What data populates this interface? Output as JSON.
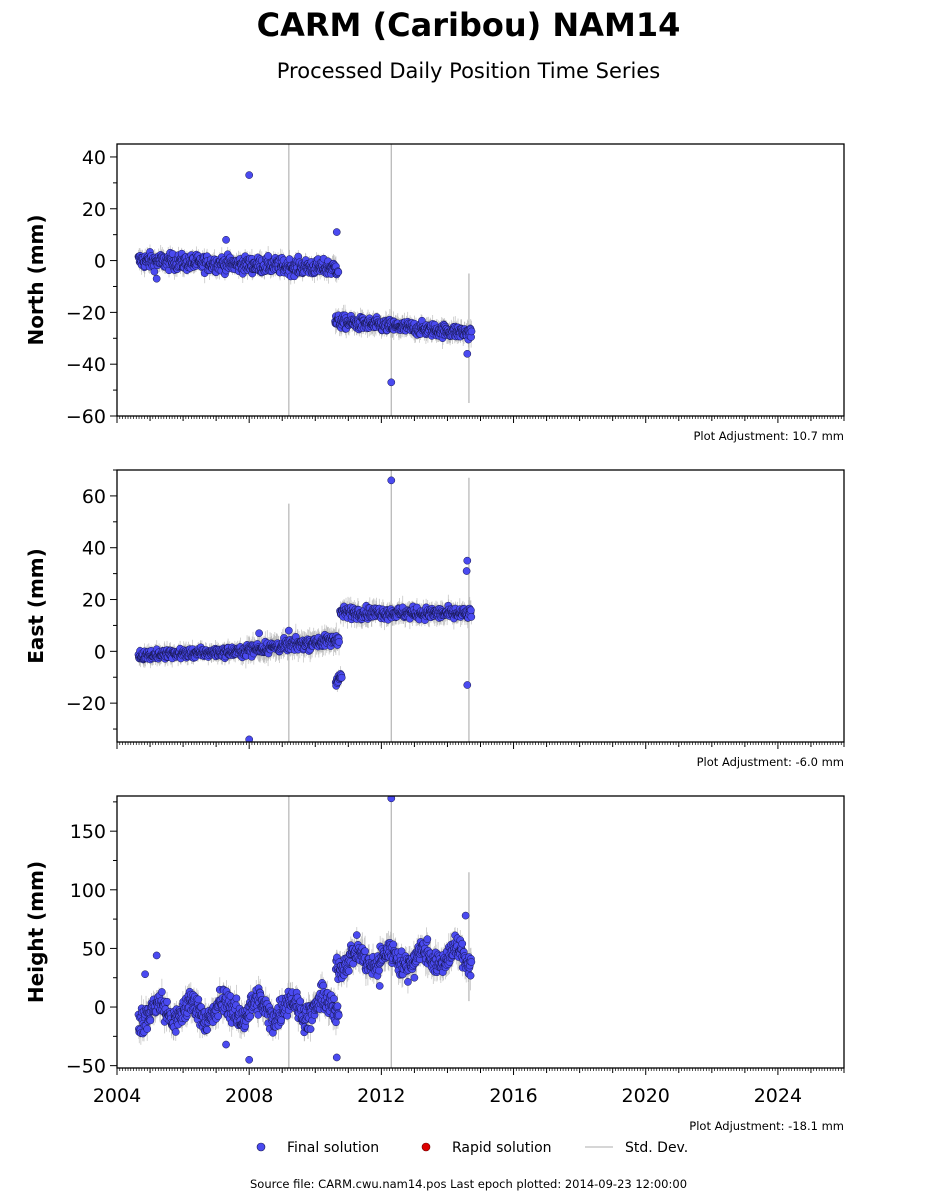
{
  "title": "CARM (Caribou) NAM14",
  "subtitle": "Processed Daily Position Time Series",
  "source_note": "Source file: CARM.cwu.nam14.pos  Last epoch plotted: 2014-09-23 12:00:00",
  "legend": {
    "final": "Final solution",
    "rapid": "Rapid solution",
    "std": "Std. Dev."
  },
  "colors": {
    "final": "#4a4af0",
    "final_edge": "#15154a",
    "rapid": "#dd0000",
    "std": "#b4b4b4"
  },
  "chart_data": [
    {
      "type": "scatter",
      "ylabel": "North (mm)",
      "adjustment": "Plot Adjustment: 10.7 mm",
      "xlim": [
        2004,
        2026
      ],
      "ylim": [
        -60,
        45
      ],
      "yticks": [
        "40",
        "20",
        "0",
        "−20",
        "−40",
        "−60"
      ],
      "ytick_values": [
        40,
        20,
        0,
        -20,
        -40,
        -60
      ],
      "segments": [
        {
          "x0": 2004.65,
          "x1": 2010.7,
          "y0": 0.0,
          "y1": -3.0,
          "scatter": 2.2,
          "std": 2.6
        },
        {
          "x0": 2010.6,
          "x1": 2014.73,
          "y0": -23.5,
          "y1": -28.0,
          "scatter": 1.8,
          "std": 2.8
        }
      ],
      "outliers": [
        [
          2008.0,
          33
        ],
        [
          2007.3,
          8
        ],
        [
          2010.65,
          11
        ],
        [
          2012.3,
          -47
        ],
        [
          2014.6,
          -36
        ],
        [
          2005.2,
          -7
        ]
      ],
      "spikes": [
        [
          2009.2,
          -60,
          45
        ],
        [
          2012.3,
          -60,
          45
        ],
        [
          2014.65,
          -55,
          -5
        ]
      ]
    },
    {
      "type": "scatter",
      "ylabel": "East (mm)",
      "adjustment": "Plot Adjustment: -6.0 mm",
      "xlim": [
        2004,
        2026
      ],
      "ylim": [
        -35,
        70
      ],
      "yticks": [
        "60",
        "40",
        "20",
        "0",
        "−20"
      ],
      "ytick_values": [
        60,
        40,
        20,
        0,
        -20
      ],
      "segments": [
        {
          "x0": 2004.65,
          "x1": 2007.9,
          "y0": -1.5,
          "y1": 0.0,
          "scatter": 1.3,
          "std": 2.5
        },
        {
          "x0": 2007.9,
          "x1": 2010.72,
          "y0": 0.5,
          "y1": 4.5,
          "scatter": 1.6,
          "std": 3.5
        },
        {
          "x0": 2010.62,
          "x1": 2010.8,
          "y0": -11,
          "y1": -10,
          "scatter": 1.5,
          "std": 2.5
        },
        {
          "x0": 2010.75,
          "x1": 2014.73,
          "y0": 15.0,
          "y1": 14.5,
          "scatter": 1.6,
          "std": 3.0
        }
      ],
      "outliers": [
        [
          2008.0,
          -34
        ],
        [
          2012.3,
          66
        ],
        [
          2014.6,
          35
        ],
        [
          2014.58,
          31
        ],
        [
          2014.6,
          -13
        ],
        [
          2009.2,
          8
        ],
        [
          2008.3,
          7
        ]
      ],
      "spikes": [
        [
          2009.2,
          -35,
          57
        ],
        [
          2012.3,
          -35,
          70
        ],
        [
          2014.65,
          -35,
          67
        ]
      ]
    },
    {
      "type": "scatter",
      "ylabel": "Height (mm)",
      "adjustment": "Plot Adjustment: -18.1 mm",
      "xlim": [
        2004,
        2026
      ],
      "ylim": [
        -52,
        180
      ],
      "yticks": [
        "150",
        "100",
        "50",
        "0",
        "−50"
      ],
      "ytick_values": [
        150,
        100,
        50,
        0,
        -50
      ],
      "xticks": [
        "2004",
        "2008",
        "2012",
        "2016",
        "2020",
        "2024"
      ],
      "xtick_values": [
        2004,
        2008,
        2012,
        2016,
        2020,
        2024
      ],
      "segments": [
        {
          "x0": 2004.65,
          "x1": 2010.72,
          "y0": -5,
          "y1": 0,
          "scatter": 8,
          "std": 8,
          "seasonal": 8
        },
        {
          "x0": 2010.62,
          "x1": 2014.73,
          "y0": 40,
          "y1": 43,
          "scatter": 7,
          "std": 9,
          "seasonal": 7
        }
      ],
      "outliers": [
        [
          2012.3,
          178
        ],
        [
          2005.2,
          44
        ],
        [
          2004.85,
          28
        ],
        [
          2008.0,
          -45
        ],
        [
          2010.65,
          -43
        ],
        [
          2007.3,
          -32
        ],
        [
          2011.95,
          18
        ],
        [
          2013.0,
          25
        ],
        [
          2014.55,
          78
        ]
      ],
      "spikes": [
        [
          2009.2,
          -52,
          180
        ],
        [
          2012.3,
          -52,
          180
        ],
        [
          2014.65,
          5,
          115
        ]
      ]
    }
  ]
}
